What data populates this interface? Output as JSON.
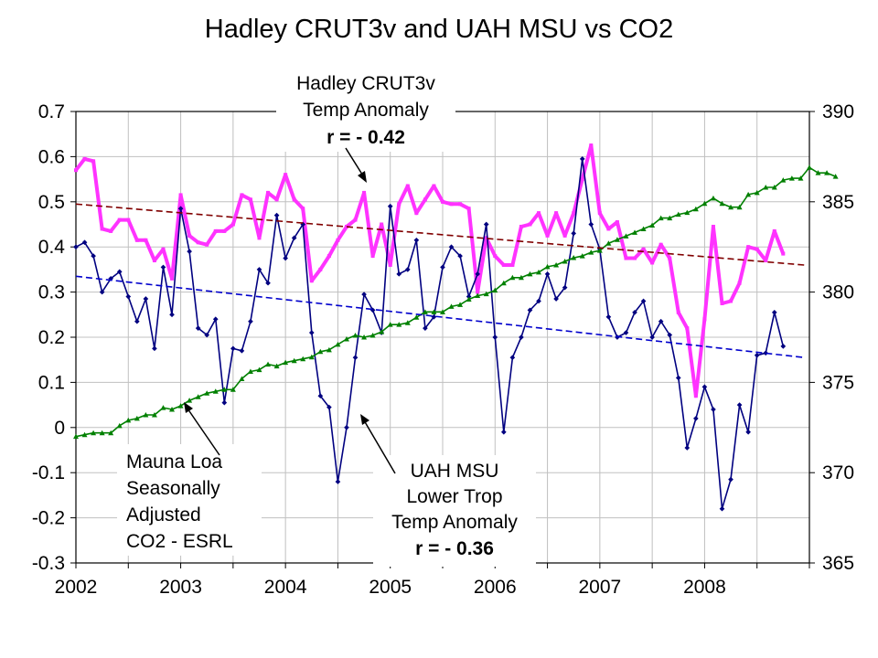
{
  "chart_data": {
    "type": "line",
    "title": "Hadley CRUT3v and UAH MSU vs CO2",
    "x_tick_labels": [
      "2002",
      "2003",
      "2004",
      "2005",
      "2006",
      "2007",
      "2008"
    ],
    "x_range": [
      2002.0,
      2009.0
    ],
    "y_left": {
      "range": [
        -0.3,
        0.7
      ],
      "ticks": [
        0.7,
        0.6,
        0.5,
        0.4,
        0.3,
        0.2,
        0.1,
        0,
        -0.1,
        -0.2,
        -0.3
      ],
      "tick_labels": [
        "0.7",
        "0.6",
        "0.5",
        "0.4",
        "0.3",
        "0.2",
        "0.1",
        "0",
        "-0.1",
        "-0.2",
        "-0.3"
      ]
    },
    "y_right": {
      "range": [
        365,
        390
      ],
      "ticks": [
        390,
        385,
        380,
        375,
        370,
        365
      ],
      "tick_labels": [
        "390",
        "385",
        "380",
        "375",
        "370",
        "365"
      ]
    },
    "grid": true,
    "series": [
      {
        "name": "Hadley CRUT3v Temp Anomaly",
        "axis": "left",
        "color": "#ff33ff",
        "x_start": 2002.0,
        "x_step": 0.08333,
        "values": [
          0.57,
          0.595,
          0.59,
          0.44,
          0.435,
          0.46,
          0.46,
          0.415,
          0.415,
          0.37,
          0.395,
          0.33,
          0.515,
          0.425,
          0.41,
          0.405,
          0.435,
          0.435,
          0.45,
          0.515,
          0.505,
          0.42,
          0.52,
          0.505,
          0.56,
          0.505,
          0.485,
          0.325,
          0.35,
          0.38,
          0.415,
          0.445,
          0.46,
          0.52,
          0.38,
          0.45,
          0.36,
          0.495,
          0.535,
          0.475,
          0.505,
          0.535,
          0.5,
          0.495,
          0.495,
          0.485,
          0.3,
          0.42,
          0.38,
          0.36,
          0.36,
          0.445,
          0.45,
          0.475,
          0.425,
          0.475,
          0.425,
          0.475,
          0.55,
          0.625,
          0.475,
          0.44,
          0.455,
          0.375,
          0.375,
          0.395,
          0.365,
          0.405,
          0.375,
          0.255,
          0.22,
          0.07,
          0.24,
          0.445,
          0.275,
          0.28,
          0.32,
          0.4,
          0.395,
          0.37,
          0.435,
          0.385
        ]
      },
      {
        "name": "UAH MSU Lower Trop Temp Anomaly",
        "axis": "left",
        "color": "#000080",
        "x_start": 2002.0,
        "x_step": 0.08333,
        "values": [
          0.4,
          0.41,
          0.38,
          0.3,
          0.33,
          0.345,
          0.29,
          0.235,
          0.285,
          0.175,
          0.355,
          0.25,
          0.485,
          0.39,
          0.22,
          0.205,
          0.24,
          0.055,
          0.175,
          0.17,
          0.235,
          0.35,
          0.32,
          0.47,
          0.375,
          0.42,
          0.45,
          0.21,
          0.07,
          0.045,
          -0.12,
          0.0,
          0.155,
          0.295,
          0.26,
          0.21,
          0.49,
          0.34,
          0.35,
          0.415,
          0.22,
          0.245,
          0.355,
          0.4,
          0.38,
          0.29,
          0.34,
          0.45,
          0.2,
          -0.01,
          0.155,
          0.2,
          0.26,
          0.28,
          0.34,
          0.285,
          0.31,
          0.43,
          0.595,
          0.45,
          0.395,
          0.245,
          0.2,
          0.21,
          0.255,
          0.28,
          0.2,
          0.235,
          0.205,
          0.11,
          -0.045,
          0.02,
          0.09,
          0.04,
          -0.18,
          -0.115,
          0.05,
          -0.01,
          0.16,
          0.165,
          0.255,
          0.18
        ]
      },
      {
        "name": "Mauna Loa Seasonally Adjusted CO2 - ESRL",
        "axis": "right",
        "color": "#008000",
        "x_start": 2002.0,
        "x_step": 0.08333,
        "values": [
          372.0,
          372.1,
          372.2,
          372.2,
          372.2,
          372.6,
          372.9,
          373.0,
          373.2,
          373.2,
          373.6,
          373.5,
          373.7,
          374.0,
          374.2,
          374.4,
          374.5,
          374.6,
          374.6,
          375.2,
          375.6,
          375.7,
          376.0,
          375.9,
          376.1,
          376.2,
          376.3,
          376.4,
          376.7,
          376.8,
          377.1,
          377.4,
          377.6,
          377.5,
          377.6,
          377.8,
          378.2,
          378.2,
          378.3,
          378.6,
          378.9,
          378.9,
          378.9,
          379.2,
          379.3,
          379.6,
          379.8,
          379.9,
          380.1,
          380.5,
          380.8,
          380.8,
          381.0,
          381.1,
          381.4,
          381.5,
          381.7,
          381.9,
          382.0,
          382.2,
          382.3,
          382.7,
          382.9,
          383.1,
          383.3,
          383.5,
          383.7,
          384.1,
          384.1,
          384.3,
          384.4,
          384.6,
          384.9,
          385.2,
          384.9,
          384.7,
          384.7,
          385.4,
          385.5,
          385.8,
          385.8,
          386.2,
          386.3,
          386.3,
          386.9,
          386.6,
          386.6,
          386.4
        ]
      },
      {
        "name": "Hadley trend",
        "axis": "left",
        "color": "#800000",
        "style": "dashed",
        "x": [
          2002.0,
          2008.95
        ],
        "values": [
          0.495,
          0.36
        ]
      },
      {
        "name": "UAH trend",
        "axis": "left",
        "color": "#0000cc",
        "style": "dashed",
        "x": [
          2002.0,
          2008.95
        ],
        "values": [
          0.335,
          0.155
        ]
      }
    ],
    "annotations": {
      "hadley": {
        "lines": [
          "Hadley CRUT3v",
          "Temp Anomaly"
        ],
        "stat": "r = - 0.42"
      },
      "uah": {
        "lines": [
          "UAH MSU",
          "Lower Trop",
          "Temp Anomaly"
        ],
        "stat": "r = - 0.36"
      },
      "co2": {
        "lines": [
          "Mauna Loa",
          "Seasonally",
          "Adjusted",
          "CO2 - ESRL"
        ]
      }
    }
  }
}
